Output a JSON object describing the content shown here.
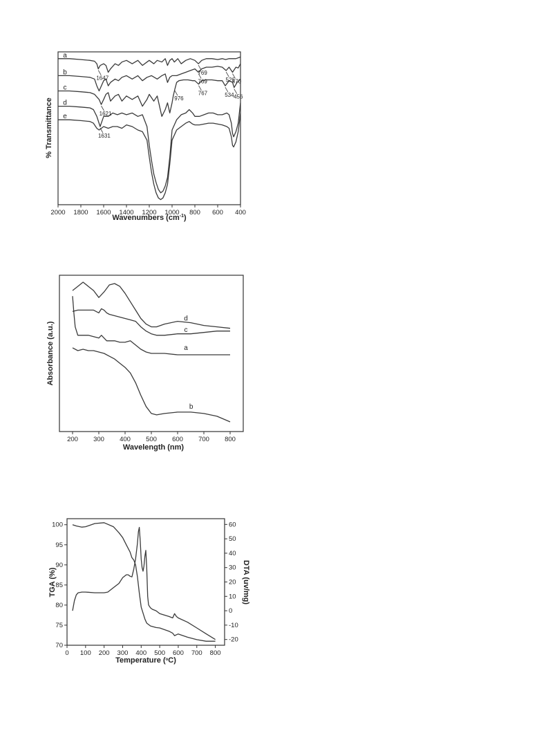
{
  "chart_data": [
    {
      "type": "line",
      "xlabel": "Wavenumbers (cm⁻¹)",
      "ylabel": "% Transmittance",
      "xlim": [
        2000,
        400
      ],
      "x_reversed": true,
      "x_ticks": [
        "2000",
        "1800",
        "1600",
        "1400",
        "1200",
        "1000",
        "800",
        "600",
        "400"
      ],
      "series": [
        {
          "name": "a",
          "x": [
            2000,
            1900,
            1800,
            1720,
            1680,
            1660,
            1647,
            1630,
            1600,
            1580,
            1560,
            1540,
            1500,
            1470,
            1440,
            1400,
            1350,
            1300,
            1260,
            1220,
            1200,
            1160,
            1130,
            1090,
            1060,
            1040,
            1020,
            1000,
            980,
            950,
            920,
            880,
            840,
            800,
            769,
            740,
            700,
            650,
            600,
            560,
            530,
            500,
            470,
            440,
            420,
            400
          ],
          "y": [
            96,
            96,
            95.5,
            95,
            94.5,
            93,
            90,
            92,
            93,
            92,
            88,
            90,
            93,
            92,
            94,
            95,
            93,
            95,
            92,
            94,
            95,
            93,
            95,
            94,
            96,
            92,
            95,
            96,
            94,
            96,
            93,
            95,
            96,
            95,
            93,
            95,
            96,
            96,
            95.5,
            96,
            95.5,
            96,
            96,
            96,
            96.5,
            97
          ]
        },
        {
          "name": "b",
          "x": [
            2000,
            1900,
            1800,
            1720,
            1680,
            1660,
            1640,
            1620,
            1600,
            1580,
            1560,
            1540,
            1500,
            1470,
            1440,
            1400,
            1350,
            1300,
            1260,
            1220,
            1180,
            1130,
            1090,
            1060,
            1040,
            1020,
            1000,
            960,
            920,
            880,
            840,
            800,
            769,
            740,
            700,
            650,
            600,
            560,
            526,
            500,
            470,
            440,
            420,
            400
          ],
          "y": [
            86,
            86,
            85.5,
            85,
            84,
            80,
            77,
            80,
            83,
            84,
            80,
            82,
            84,
            83,
            85,
            86,
            84,
            86,
            83,
            85,
            86,
            84,
            86,
            87,
            82,
            85,
            86,
            86,
            87,
            88,
            89,
            90,
            88,
            90,
            91,
            91,
            91.5,
            91,
            89,
            91,
            88,
            91,
            90.5,
            93
          ]
        },
        {
          "name": "c",
          "x": [
            2000,
            1900,
            1800,
            1720,
            1680,
            1640,
            1621,
            1600,
            1580,
            1560,
            1540,
            1500,
            1470,
            1440,
            1400,
            1350,
            1300,
            1260,
            1220,
            1200,
            1160,
            1130,
            1090,
            1060,
            1040,
            1020,
            1000,
            990,
            976,
            960,
            940,
            900,
            860,
            820,
            800,
            767,
            740,
            700,
            650,
            600,
            560,
            534,
            500,
            470,
            456,
            430,
            400
          ],
          "y": [
            77,
            77,
            76.5,
            76,
            75,
            72,
            69,
            72,
            75,
            76,
            71,
            74,
            75,
            71,
            74,
            72,
            74,
            68,
            72,
            75,
            71,
            74,
            62,
            66,
            70,
            64,
            70,
            74,
            78,
            82,
            83,
            83.5,
            83.5,
            83,
            83,
            81,
            83,
            83.5,
            83.5,
            83,
            83,
            80,
            83,
            82,
            79,
            82,
            84
          ]
        },
        {
          "name": "d",
          "x": [
            2000,
            1900,
            1800,
            1720,
            1690,
            1660,
            1631,
            1600,
            1560,
            1520,
            1480,
            1440,
            1400,
            1350,
            1300,
            1260,
            1220,
            1200,
            1180,
            1160,
            1140,
            1120,
            1100,
            1080,
            1060,
            1040,
            1020,
            1000,
            960,
            920,
            880,
            850,
            820,
            800,
            760,
            720,
            680,
            640,
            600,
            560,
            520,
            500,
            480,
            470,
            460,
            440,
            420,
            400
          ],
          "y": [
            68,
            68,
            67.5,
            67,
            66,
            62,
            56,
            62,
            62,
            64,
            63,
            64,
            63,
            64,
            62,
            63,
            56,
            45,
            36,
            28,
            23,
            19,
            17,
            18,
            21,
            26,
            38,
            54,
            60,
            63,
            64,
            66,
            64,
            62,
            62,
            63,
            64,
            64,
            63,
            63,
            64,
            63,
            58,
            52,
            50,
            53,
            58,
            70
          ]
        },
        {
          "name": "e",
          "x": [
            2000,
            1900,
            1800,
            1720,
            1690,
            1660,
            1640,
            1600,
            1560,
            1520,
            1480,
            1440,
            1400,
            1350,
            1300,
            1260,
            1220,
            1200,
            1180,
            1160,
            1140,
            1120,
            1100,
            1080,
            1060,
            1040,
            1020,
            1000,
            960,
            920,
            880,
            850,
            820,
            800,
            760,
            720,
            680,
            640,
            600,
            560,
            520,
            500,
            480,
            470,
            460,
            440,
            420,
            400
          ],
          "y": [
            60,
            60,
            59.5,
            59,
            58,
            55,
            54,
            56,
            55,
            56,
            56,
            55,
            57,
            56,
            54,
            53,
            48,
            38,
            29,
            22,
            17,
            14,
            13,
            14,
            17,
            22,
            34,
            48,
            54,
            56,
            58,
            59,
            57.5,
            57,
            57,
            57.5,
            58,
            58,
            57.5,
            57,
            56,
            55,
            50,
            45,
            44,
            47,
            53,
            64
          ]
        }
      ],
      "annotations": [
        {
          "text": "1647",
          "x": 1647,
          "series": "a"
        },
        {
          "text": "769",
          "x": 769,
          "series": "a"
        },
        {
          "text": "769",
          "x": 769,
          "series": "b"
        },
        {
          "text": "526",
          "x": 526,
          "series": "b"
        },
        {
          "text": "470",
          "x": 470,
          "series": "b"
        },
        {
          "text": "1621",
          "x": 1621,
          "series": "c"
        },
        {
          "text": "767",
          "x": 767,
          "series": "c"
        },
        {
          "text": "534",
          "x": 534,
          "series": "c"
        },
        {
          "text": "456",
          "x": 456,
          "series": "c"
        },
        {
          "text": "976",
          "x": 976,
          "series": "c"
        },
        {
          "text": "1631",
          "x": 1631,
          "series": "d"
        }
      ]
    },
    {
      "type": "line",
      "xlabel": "Wavelength (nm)",
      "ylabel": "Absorbance (a.u.)",
      "xlim": [
        150,
        850
      ],
      "x_ticks": [
        "200",
        "300",
        "400",
        "500",
        "600",
        "700",
        "800"
      ],
      "series": [
        {
          "name": "d",
          "x": [
            200,
            220,
            240,
            260,
            280,
            300,
            320,
            340,
            360,
            380,
            400,
            420,
            440,
            460,
            480,
            500,
            520,
            550,
            600,
            650,
            700,
            750,
            800
          ],
          "y": [
            0.94,
            0.97,
            1.0,
            0.97,
            0.94,
            0.89,
            0.93,
            0.98,
            0.99,
            0.97,
            0.92,
            0.86,
            0.8,
            0.74,
            0.7,
            0.68,
            0.68,
            0.7,
            0.72,
            0.71,
            0.69,
            0.68,
            0.67
          ]
        },
        {
          "name": "c",
          "x": [
            200,
            220,
            240,
            260,
            280,
            300,
            310,
            320,
            330,
            340,
            360,
            380,
            400,
            420,
            440,
            460,
            480,
            500,
            520,
            550,
            600,
            650,
            700,
            750,
            800
          ],
          "y": [
            0.79,
            0.8,
            0.8,
            0.8,
            0.8,
            0.78,
            0.81,
            0.8,
            0.78,
            0.77,
            0.76,
            0.75,
            0.74,
            0.73,
            0.72,
            0.68,
            0.65,
            0.63,
            0.62,
            0.62,
            0.63,
            0.63,
            0.64,
            0.65,
            0.65
          ]
        },
        {
          "name": "a",
          "x": [
            200,
            205,
            210,
            220,
            240,
            260,
            280,
            300,
            310,
            320,
            330,
            340,
            360,
            380,
            400,
            420,
            440,
            460,
            480,
            500,
            550,
            600,
            650,
            700,
            750,
            800
          ],
          "y": [
            0.9,
            0.78,
            0.68,
            0.62,
            0.62,
            0.62,
            0.61,
            0.6,
            0.62,
            0.6,
            0.58,
            0.58,
            0.58,
            0.57,
            0.57,
            0.58,
            0.55,
            0.52,
            0.5,
            0.49,
            0.49,
            0.48,
            0.48,
            0.48,
            0.48,
            0.48
          ]
        },
        {
          "name": "b",
          "x": [
            200,
            220,
            240,
            260,
            280,
            300,
            320,
            340,
            360,
            380,
            400,
            420,
            440,
            460,
            480,
            500,
            520,
            550,
            600,
            650,
            700,
            750,
            800
          ],
          "y": [
            0.53,
            0.51,
            0.52,
            0.51,
            0.51,
            0.5,
            0.49,
            0.47,
            0.45,
            0.42,
            0.39,
            0.35,
            0.28,
            0.19,
            0.11,
            0.06,
            0.05,
            0.06,
            0.07,
            0.07,
            0.06,
            0.04,
            0.0
          ]
        }
      ]
    },
    {
      "type": "line",
      "xlabel": "Temperature (°C)",
      "ylabel": "TGA (%)",
      "ylabel2": "DTA (uv/mg)",
      "xlim": [
        0,
        850
      ],
      "ylim": [
        70,
        101.5
      ],
      "ylim2": [
        -24,
        64
      ],
      "x_ticks": [
        "0",
        "100",
        "200",
        "300",
        "400",
        "500",
        "600",
        "700",
        "800"
      ],
      "y_ticks": [
        "70",
        "75",
        "80",
        "85",
        "90",
        "95",
        "100"
      ],
      "y2_ticks": [
        "-20",
        "-10",
        "0",
        "10",
        "20",
        "30",
        "40",
        "50",
        "60"
      ],
      "series": [
        {
          "name": "TGA",
          "axis": "left",
          "x": [
            30,
            50,
            80,
            100,
            150,
            200,
            250,
            280,
            300,
            320,
            340,
            350,
            360,
            370,
            380,
            390,
            400,
            420,
            430,
            450,
            480,
            500,
            550,
            570,
            580,
            600,
            650,
            700,
            750,
            800
          ],
          "y": [
            100,
            99.7,
            99.4,
            99.5,
            100.3,
            100.5,
            99.5,
            98,
            96.8,
            95,
            93.2,
            91.8,
            91.2,
            90,
            87,
            83,
            79.5,
            76.5,
            75.5,
            74.8,
            74.4,
            74.3,
            73.5,
            73,
            72.4,
            72.8,
            72,
            71.4,
            71,
            71
          ]
        },
        {
          "name": "DTA",
          "axis": "right",
          "x": [
            30,
            40,
            50,
            60,
            80,
            100,
            150,
            200,
            220,
            240,
            260,
            280,
            300,
            320,
            330,
            340,
            350,
            360,
            370,
            380,
            385,
            390,
            395,
            400,
            405,
            410,
            415,
            420,
            425,
            430,
            435,
            440,
            450,
            460,
            480,
            500,
            550,
            570,
            580,
            590,
            600,
            650,
            700,
            750,
            800
          ],
          "y": [
            0,
            7,
            11,
            12.5,
            13,
            13,
            12.5,
            12.5,
            13,
            15,
            17,
            19,
            23,
            25,
            25,
            24,
            23.5,
            29,
            36,
            47,
            55,
            58,
            48,
            36,
            30,
            27.5,
            31,
            38,
            42,
            30,
            10,
            4,
            2,
            1,
            0,
            -2,
            -4,
            -5,
            -2,
            -4,
            -5,
            -8,
            -12,
            -16,
            -20
          ]
        }
      ]
    }
  ],
  "panel_text": {
    "ftir": {
      "ylabel": "% Transmittance",
      "xlabel_main": "Wavenumbers (cm",
      "xlabel_sup": "-1",
      "xlabel_end": ")",
      "series_labels": [
        "a",
        "b",
        "c",
        "d",
        "e"
      ]
    },
    "uvvis": {
      "ylabel": "Absorbance (a.u.)",
      "xlabel": "Wavelength (nm)",
      "series_labels": [
        "d",
        "c",
        "a",
        "b"
      ]
    },
    "tga": {
      "ylabel_left": "TGA (%)",
      "ylabel_right": "DTA (uv/mg)",
      "xlabel_main": "Temperature (",
      "xlabel_sup": "o",
      "xlabel_end": "C)"
    }
  }
}
